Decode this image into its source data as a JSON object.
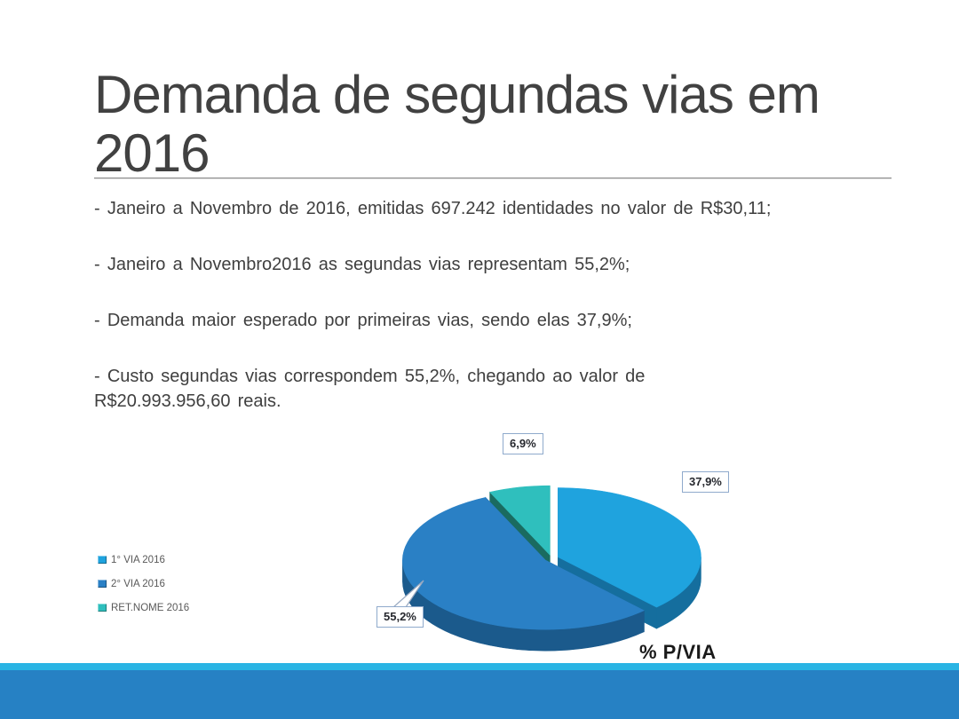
{
  "slide": {
    "title": "Demanda de segundas vias em 2016",
    "bullets": [
      "- Janeiro a Novembro de 2016, emitidas 697.242 identidades no valor de R$30,11;",
      "- Janeiro a Novembro2016 as segundas vias representam 55,2%;",
      "- Demanda maior esperado por primeiras vias, sendo elas 37,9%;",
      "- Custo segundas vias correspondem 55,2%, chegando ao valor de R$20.993.956,60 reais."
    ],
    "footer_colors": {
      "strip": "#29b4e4",
      "bar": "#2681c4"
    }
  },
  "chart_data": {
    "type": "pie",
    "style": "3d-exploded",
    "axis_label": "% P/VIA",
    "legend_position": "left",
    "legend": [
      "1° VIA 2016",
      "2° VIA 2016",
      "RET.NOME 2016"
    ],
    "slices": [
      {
        "label": "1° VIA 2016",
        "value": 37.9,
        "display": "37,9%",
        "color": "#1fa3de",
        "side_color": "#156e9e"
      },
      {
        "label": "2° VIA 2016",
        "value": 55.2,
        "display": "55,2%",
        "color": "#2a80c5",
        "side_color": "#1b5a8c"
      },
      {
        "label": "RET.NOME 2016",
        "value": 6.9,
        "display": "6,9%",
        "color": "#2fbfbd",
        "side_color": "#1a6b60"
      }
    ],
    "label_box_border": "#8faacc"
  }
}
